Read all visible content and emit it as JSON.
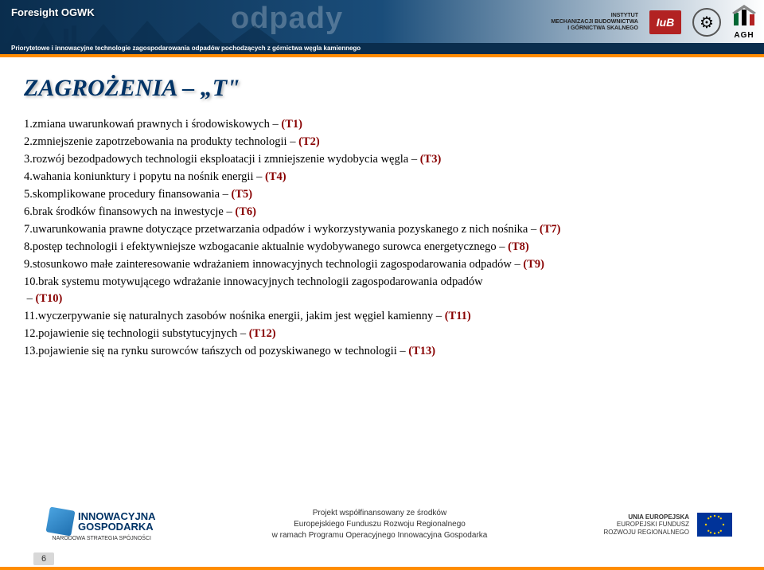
{
  "header": {
    "brand": "Foresight OGWK",
    "watermark": "odpady",
    "subtitle": "Priorytetowe i innowacyjne technologie zagospodarowania odpadów pochodzących z górnictwa węgla kamiennego",
    "instytut_line1": "INSTYTUT",
    "instytut_line2": "MECHANIZACJI BUDOWNICTWA",
    "instytut_line3": "I GÓRNICTWA SKALNEGO",
    "imb": "IиB",
    "agh": "AGH"
  },
  "slide": {
    "title": "ZAGROŻENIA – „T\"",
    "threats": [
      {
        "n": "1.",
        "text": "zmiana uwarunkowań prawnych i środowiskowych ",
        "code": "(T1)",
        "indent": false
      },
      {
        "n": "2.",
        "text": "zmniejszenie zapotrzebowania na produkty technologii ",
        "code": "(T2)",
        "indent": false
      },
      {
        "n": "3.",
        "text": "rozwój bezodpadowych technologii eksploatacji i zmniejszenie wydobycia węgla ",
        "code": "(T3)",
        "indent": false
      },
      {
        "n": "4.",
        "text": "wahania koniunktury i popytu na nośnik energii ",
        "code": "(T4)",
        "indent": false
      },
      {
        "n": "5.",
        "text": "skomplikowane procedury finansowania ",
        "code": "(T5)",
        "indent": false
      },
      {
        "n": "6.",
        "text": "brak środków finansowych na inwestycje ",
        "code": "(T6)",
        "indent": false
      },
      {
        "n": "7.",
        "text": "uwarunkowania prawne dotyczące przetwarzania odpadów i wykorzystywania pozyskanego z nich nośnika ",
        "code": "(T7)",
        "indent": false
      },
      {
        "n": "8.",
        "text": "postęp technologii i efektywniejsze wzbogacanie aktualnie wydobywanego surowca energetycznego ",
        "code": "(T8)",
        "indent": false
      },
      {
        "n": "9.",
        "text": "stosunkowo małe zainteresowanie wdrażaniem innowacyjnych technologii zagospodarowania odpadów ",
        "code": "(T9)",
        "indent": false
      },
      {
        "n": "10.",
        "text": "brak systemu motywującego wdrażanie innowacyjnych technologii zagospodarowania odpadów ",
        "code": "(T10)",
        "indent": true
      },
      {
        "n": "11.",
        "text": "wyczerpywanie się naturalnych zasobów nośnika energii, jakim jest węgiel kamienny ",
        "code": "(T11)",
        "indent": false
      },
      {
        "n": "12.",
        "text": "pojawienie się technologii substytucyjnych ",
        "code": "(T12)",
        "indent": false
      },
      {
        "n": "13.",
        "text": "pojawienie się na rynku surowców tańszych od pozyskiwanego w technologii ",
        "code": "(T13)",
        "indent": false
      }
    ]
  },
  "footer": {
    "ig_line1": "INNOWACYJNA",
    "ig_line2": "GOSPODARKA",
    "ig_sub": "NARODOWA STRATEGIA SPÓJNOŚCI",
    "center_l1": "Projekt współfinansowany ze środków",
    "center_l2": "Europejskiego Funduszu Rozwoju Regionalnego",
    "center_l3": "w ramach Programu Operacyjnego Innowacyjna Gospodarka",
    "eu_l1": "UNIA EUROPEJSKA",
    "eu_l2": "EUROPEJSKI FUNDUSZ",
    "eu_l3": "ROZWOJU REGIONALNEGO",
    "page": "6"
  },
  "colors": {
    "title": "#003366",
    "code": "#880000",
    "accent": "#ff8c00",
    "header_bg": "#0a2d4d"
  }
}
